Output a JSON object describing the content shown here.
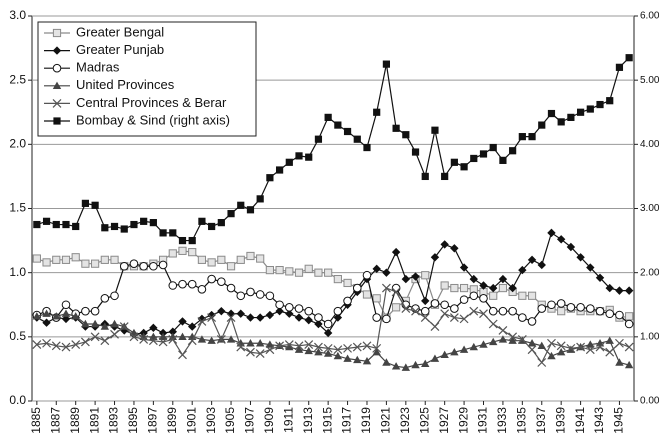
{
  "chart_data": {
    "type": "line",
    "x": [
      1885,
      1886,
      1887,
      1888,
      1889,
      1890,
      1891,
      1892,
      1893,
      1894,
      1895,
      1896,
      1897,
      1898,
      1899,
      1900,
      1901,
      1902,
      1903,
      1904,
      1905,
      1906,
      1907,
      1908,
      1909,
      1910,
      1911,
      1912,
      1913,
      1914,
      1915,
      1916,
      1917,
      1918,
      1919,
      1920,
      1921,
      1922,
      1923,
      1924,
      1925,
      1926,
      1927,
      1928,
      1929,
      1930,
      1931,
      1932,
      1933,
      1934,
      1935,
      1936,
      1937,
      1938,
      1939,
      1940,
      1941,
      1942,
      1943,
      1944,
      1945,
      1946
    ],
    "xlim": [
      1884.5,
      1946.5
    ],
    "xticks": [
      1885,
      1887,
      1889,
      1891,
      1893,
      1895,
      1897,
      1899,
      1901,
      1903,
      1905,
      1907,
      1909,
      1911,
      1913,
      1915,
      1917,
      1919,
      1921,
      1923,
      1925,
      1927,
      1929,
      1931,
      1933,
      1935,
      1937,
      1939,
      1941,
      1943,
      1945
    ],
    "ylim": [
      0,
      3
    ],
    "yticks": [
      {
        "value": 0,
        "label": "0.0"
      },
      {
        "value": 0.5,
        "label": "0.5"
      },
      {
        "value": 1,
        "label": "1.0"
      },
      {
        "value": 1.5,
        "label": "1.5"
      },
      {
        "value": 2,
        "label": "2.0"
      },
      {
        "value": 2.5,
        "label": "2.5"
      },
      {
        "value": 3,
        "label": "3.0"
      }
    ],
    "y2lim": [
      0,
      6
    ],
    "y2ticks": [
      {
        "value": 0,
        "label": "0.00"
      },
      {
        "value": 1,
        "label": "1.00"
      },
      {
        "value": 2,
        "label": "2.00"
      },
      {
        "value": 3,
        "label": "3.00"
      },
      {
        "value": 4,
        "label": "4.00"
      },
      {
        "value": 5,
        "label": "5.00"
      },
      {
        "value": 6,
        "label": "6.00"
      }
    ],
    "grid": true,
    "legend": "upper-left",
    "series": [
      {
        "name": "Greater Bengal",
        "color": "#8a8a8a",
        "marker": "square-open",
        "values": [
          1.11,
          1.08,
          1.1,
          1.1,
          1.12,
          1.07,
          1.07,
          1.1,
          1.1,
          1.05,
          1.05,
          1.05,
          1.07,
          1.1,
          1.15,
          1.17,
          1.16,
          1.1,
          1.08,
          1.1,
          1.05,
          1.1,
          1.13,
          1.11,
          1.02,
          1.02,
          1.01,
          1.0,
          1.03,
          1.0,
          1.0,
          0.95,
          0.92,
          0.88,
          0.83,
          0.8,
          0.65,
          0.73,
          0.78,
          0.95,
          0.98,
          0.75,
          0.9,
          0.88,
          0.88,
          0.87,
          0.85,
          0.82,
          0.88,
          0.85,
          0.82,
          0.82,
          0.75,
          0.72,
          0.7,
          0.72,
          0.7,
          0.7,
          0.7,
          0.71,
          0.65,
          0.66
        ]
      },
      {
        "name": "Greater Punjab",
        "color": "#111111",
        "marker": "diamond",
        "values": [
          0.65,
          0.61,
          0.65,
          0.64,
          0.65,
          0.58,
          0.58,
          0.6,
          0.58,
          0.55,
          0.52,
          0.53,
          0.57,
          0.53,
          0.54,
          0.62,
          0.58,
          0.64,
          0.67,
          0.7,
          0.68,
          0.68,
          0.65,
          0.65,
          0.67,
          0.7,
          0.68,
          0.65,
          0.63,
          0.6,
          0.53,
          0.65,
          0.75,
          0.85,
          0.95,
          1.03,
          1.0,
          1.16,
          0.95,
          0.97,
          0.78,
          1.12,
          1.22,
          1.19,
          1.04,
          0.95,
          0.9,
          0.88,
          0.95,
          0.88,
          1.02,
          1.1,
          1.06,
          1.31,
          1.26,
          1.2,
          1.12,
          1.04,
          0.96,
          0.88,
          0.86,
          0.86
        ]
      },
      {
        "name": "Madras",
        "color": "#111111",
        "marker": "circle-open",
        "values": [
          0.67,
          0.7,
          0.65,
          0.75,
          0.68,
          0.7,
          0.7,
          0.8,
          0.82,
          1.05,
          1.07,
          1.05,
          1.05,
          1.06,
          0.9,
          0.91,
          0.91,
          0.87,
          0.95,
          0.93,
          0.88,
          0.82,
          0.85,
          0.83,
          0.82,
          0.75,
          0.73,
          0.72,
          0.7,
          0.65,
          0.6,
          0.7,
          0.78,
          0.88,
          0.98,
          0.65,
          0.64,
          0.88,
          0.75,
          0.72,
          0.7,
          0.76,
          0.75,
          0.72,
          0.79,
          0.82,
          0.8,
          0.7,
          0.7,
          0.7,
          0.65,
          0.62,
          0.72,
          0.75,
          0.76,
          0.73,
          0.73,
          0.72,
          0.7,
          0.68,
          0.67,
          0.6
        ]
      },
      {
        "name": "United Provinces",
        "color": "#444444",
        "marker": "triangle",
        "values": [
          0.66,
          0.68,
          0.66,
          0.68,
          0.66,
          0.6,
          0.6,
          0.58,
          0.6,
          0.58,
          0.53,
          0.5,
          0.5,
          0.5,
          0.5,
          0.5,
          0.5,
          0.48,
          0.47,
          0.48,
          0.48,
          0.45,
          0.45,
          0.45,
          0.44,
          0.43,
          0.42,
          0.4,
          0.39,
          0.38,
          0.37,
          0.35,
          0.33,
          0.32,
          0.31,
          0.38,
          0.3,
          0.27,
          0.26,
          0.28,
          0.29,
          0.33,
          0.36,
          0.38,
          0.4,
          0.42,
          0.44,
          0.46,
          0.48,
          0.47,
          0.47,
          0.45,
          0.43,
          0.35,
          0.38,
          0.4,
          0.42,
          0.44,
          0.45,
          0.47,
          0.3,
          0.28
        ]
      },
      {
        "name": "Central Provinces & Berar",
        "color": "#555555",
        "marker": "x",
        "values": [
          0.44,
          0.45,
          0.43,
          0.42,
          0.44,
          0.46,
          0.5,
          0.47,
          0.52,
          0.58,
          0.5,
          0.48,
          0.47,
          0.46,
          0.48,
          0.36,
          0.47,
          0.62,
          0.65,
          0.48,
          0.65,
          0.42,
          0.38,
          0.37,
          0.4,
          0.43,
          0.44,
          0.43,
          0.44,
          0.42,
          0.41,
          0.4,
          0.41,
          0.42,
          0.43,
          0.41,
          0.88,
          0.85,
          0.72,
          0.7,
          0.65,
          0.58,
          0.68,
          0.65,
          0.64,
          0.7,
          0.68,
          0.6,
          0.55,
          0.5,
          0.48,
          0.4,
          0.3,
          0.45,
          0.43,
          0.41,
          0.42,
          0.4,
          0.42,
          0.38,
          0.45,
          0.42
        ]
      },
      {
        "name": "Bombay & Sind (right axis)",
        "color": "#111111",
        "marker": "square",
        "axis": "y2",
        "values": [
          2.75,
          2.8,
          2.75,
          2.75,
          2.72,
          3.08,
          3.05,
          2.7,
          2.72,
          2.68,
          2.75,
          2.8,
          2.78,
          2.62,
          2.62,
          2.5,
          2.5,
          2.8,
          2.72,
          2.78,
          2.92,
          3.05,
          2.98,
          3.15,
          3.48,
          3.6,
          3.72,
          3.82,
          3.8,
          4.08,
          4.42,
          4.3,
          4.2,
          4.08,
          3.95,
          4.5,
          5.25,
          4.25,
          4.15,
          3.88,
          3.5,
          4.22,
          3.5,
          3.72,
          3.65,
          3.78,
          3.85,
          3.95,
          3.75,
          3.9,
          4.12,
          4.12,
          4.3,
          4.48,
          4.35,
          4.42,
          4.5,
          4.55,
          4.62,
          4.68,
          5.2,
          5.35
        ]
      }
    ]
  }
}
